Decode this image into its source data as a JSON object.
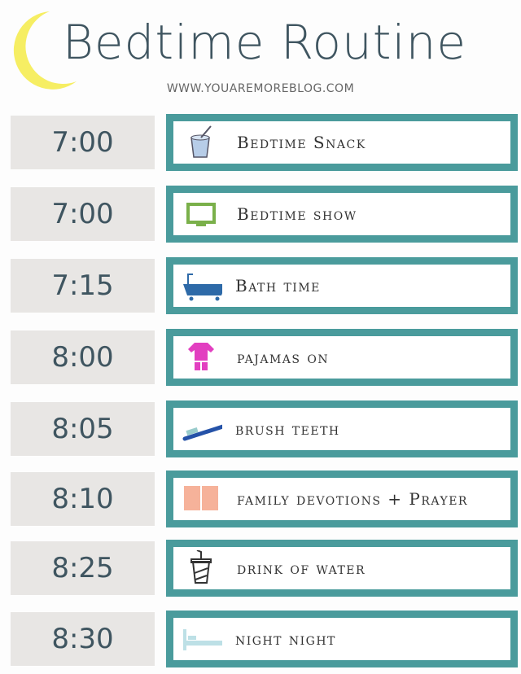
{
  "header": {
    "title": "Bedtime Routine",
    "website": "WWW.YOUAREMOREBLOG.COM"
  },
  "colors": {
    "accent": "#4a9b9c",
    "moon": "#f6ee63",
    "time_bg": "#e8e6e4",
    "text": "#3f5560"
  },
  "routine": [
    {
      "time": "7:00",
      "task": "Bedtime Snack",
      "icon": "yogurt-cup-icon"
    },
    {
      "time": "7:00",
      "task": "Bedtime show",
      "icon": "tv-icon"
    },
    {
      "time": "7:15",
      "task": "Bath time",
      "icon": "bathtub-icon"
    },
    {
      "time": "8:00",
      "task": "pajamas on",
      "icon": "pajamas-icon"
    },
    {
      "time": "8:05",
      "task": "brush teeth",
      "icon": "toothbrush-icon"
    },
    {
      "time": "8:10",
      "task": "family devotions + Prayer",
      "icon": "book-icon"
    },
    {
      "time": "8:25",
      "task": "drink of water",
      "icon": "drink-cup-icon"
    },
    {
      "time": "8:30",
      "task": "night night",
      "icon": "bed-icon"
    }
  ]
}
